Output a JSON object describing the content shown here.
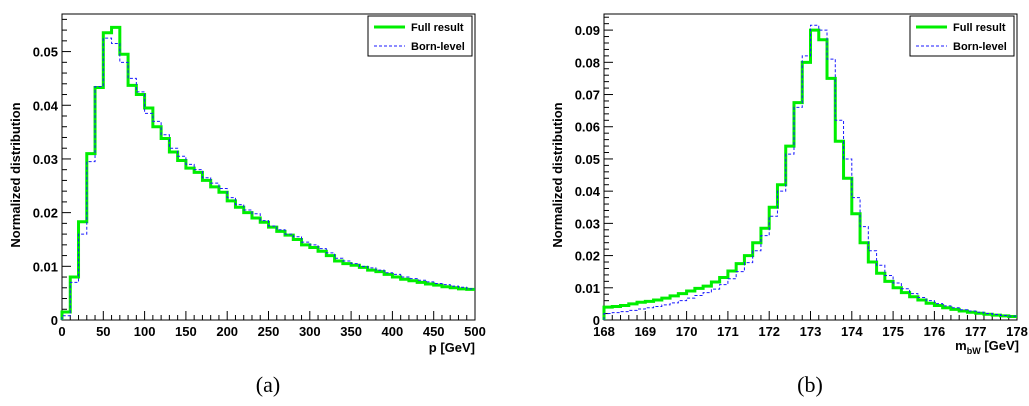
{
  "chart_data": [
    {
      "type": "line",
      "style": "step-histogram",
      "caption": "(a)",
      "xlabel": "p [GeV]",
      "ylabel": "Normalized distribution",
      "xlim": [
        0,
        500
      ],
      "ylim": [
        0,
        0.057
      ],
      "xticks": [
        0,
        50,
        100,
        150,
        200,
        250,
        300,
        350,
        400,
        450,
        500
      ],
      "xtick_labels": [
        "0",
        "50",
        "100",
        "150",
        "200",
        "250",
        "300",
        "350",
        "400",
        "450",
        "500"
      ],
      "yticks": [
        0,
        0.01,
        0.02,
        0.03,
        0.04,
        0.05
      ],
      "ytick_labels": [
        "0",
        "0.01",
        "0.02",
        "0.03",
        "0.04",
        "0.05"
      ],
      "grid": false,
      "legend_position": "top-right",
      "bin_edges": [
        0,
        10,
        20,
        30,
        40,
        50,
        60,
        70,
        80,
        90,
        100,
        110,
        120,
        130,
        140,
        150,
        160,
        170,
        180,
        190,
        200,
        210,
        220,
        230,
        240,
        250,
        260,
        270,
        280,
        290,
        300,
        310,
        320,
        330,
        340,
        350,
        360,
        370,
        380,
        390,
        400,
        410,
        420,
        430,
        440,
        450,
        460,
        470,
        480,
        490,
        500
      ],
      "series": [
        {
          "name": "Full result",
          "color": "#00ee00",
          "line": "solid",
          "values": [
            0.0015,
            0.008,
            0.0183,
            0.031,
            0.0433,
            0.0535,
            0.0545,
            0.0495,
            0.0437,
            0.042,
            0.0395,
            0.036,
            0.0338,
            0.0313,
            0.0297,
            0.0283,
            0.0275,
            0.026,
            0.0248,
            0.0238,
            0.0222,
            0.021,
            0.02,
            0.019,
            0.0182,
            0.0173,
            0.0165,
            0.0158,
            0.015,
            0.014,
            0.0135,
            0.0128,
            0.012,
            0.011,
            0.0105,
            0.0102,
            0.0098,
            0.0093,
            0.009,
            0.0085,
            0.008,
            0.0076,
            0.0073,
            0.007,
            0.0067,
            0.0065,
            0.0062,
            0.006,
            0.0058,
            0.0057
          ]
        },
        {
          "name": "Born-level",
          "color": "#1a1aff",
          "line": "dashed",
          "values": [
            0.0008,
            0.007,
            0.016,
            0.0295,
            0.0435,
            0.0525,
            0.0515,
            0.048,
            0.045,
            0.0425,
            0.0385,
            0.037,
            0.0345,
            0.032,
            0.0305,
            0.029,
            0.028,
            0.0265,
            0.0255,
            0.0245,
            0.0228,
            0.0215,
            0.0205,
            0.0198,
            0.0185,
            0.0175,
            0.0168,
            0.016,
            0.0155,
            0.0145,
            0.014,
            0.0133,
            0.0125,
            0.0115,
            0.011,
            0.0105,
            0.01,
            0.0097,
            0.0093,
            0.0088,
            0.0085,
            0.008,
            0.0077,
            0.0074,
            0.0071,
            0.0068,
            0.0066,
            0.0063,
            0.0061,
            0.0058
          ]
        }
      ]
    },
    {
      "type": "line",
      "style": "step-histogram",
      "caption": "(b)",
      "xlabel_main": "m",
      "xlabel_sub": "bW",
      "xlabel_unit": " [GeV]",
      "ylabel": "Normalized distribution",
      "xlim": [
        168,
        178
      ],
      "ylim": [
        0,
        0.095
      ],
      "xticks": [
        168,
        169,
        170,
        171,
        172,
        173,
        174,
        175,
        176,
        177,
        178
      ],
      "xtick_labels": [
        "168",
        "169",
        "170",
        "171",
        "172",
        "173",
        "174",
        "175",
        "176",
        "177",
        "178"
      ],
      "yticks": [
        0,
        0.01,
        0.02,
        0.03,
        0.04,
        0.05,
        0.06,
        0.07,
        0.08,
        0.09
      ],
      "ytick_labels": [
        "0",
        "0.01",
        "0.02",
        "0.03",
        "0.04",
        "0.05",
        "0.06",
        "0.07",
        "0.08",
        "0.09"
      ],
      "grid": false,
      "legend_position": "top-right",
      "bin_edges": [
        168,
        168.2,
        168.4,
        168.6,
        168.8,
        169,
        169.2,
        169.4,
        169.6,
        169.8,
        170,
        170.2,
        170.4,
        170.6,
        170.8,
        171,
        171.2,
        171.4,
        171.6,
        171.8,
        172,
        172.2,
        172.4,
        172.6,
        172.8,
        173,
        173.2,
        173.4,
        173.6,
        173.8,
        174,
        174.2,
        174.4,
        174.6,
        174.8,
        175,
        175.2,
        175.4,
        175.6,
        175.8,
        176,
        176.2,
        176.4,
        176.6,
        176.8,
        177,
        177.2,
        177.4,
        177.6,
        177.8,
        178
      ],
      "series": [
        {
          "name": "Full result",
          "color": "#00ee00",
          "line": "solid",
          "values": [
            0.004,
            0.0042,
            0.0045,
            0.005,
            0.0055,
            0.0058,
            0.0062,
            0.0068,
            0.0075,
            0.0082,
            0.009,
            0.0098,
            0.0105,
            0.0118,
            0.0132,
            0.0152,
            0.0175,
            0.02,
            0.024,
            0.0285,
            0.035,
            0.042,
            0.054,
            0.0675,
            0.08,
            0.09,
            0.087,
            0.075,
            0.0555,
            0.044,
            0.033,
            0.024,
            0.018,
            0.0145,
            0.012,
            0.01,
            0.0085,
            0.0072,
            0.0062,
            0.0052,
            0.0045,
            0.0038,
            0.0033,
            0.0028,
            0.0024,
            0.0021,
            0.0018,
            0.0015,
            0.0013,
            0.0011
          ]
        },
        {
          "name": "Born-level",
          "color": "#1a1aff",
          "line": "dashed",
          "values": [
            0.002,
            0.0023,
            0.0026,
            0.003,
            0.0034,
            0.0038,
            0.0042,
            0.0047,
            0.0053,
            0.006,
            0.0068,
            0.0076,
            0.0085,
            0.0096,
            0.011,
            0.0128,
            0.015,
            0.0178,
            0.0215,
            0.0262,
            0.0322,
            0.04,
            0.0515,
            0.066,
            0.082,
            0.0915,
            0.09,
            0.081,
            0.062,
            0.05,
            0.038,
            0.029,
            0.0215,
            0.017,
            0.0138,
            0.0115,
            0.0097,
            0.0082,
            0.007,
            0.006,
            0.0051,
            0.0044,
            0.0038,
            0.0032,
            0.0028,
            0.0024,
            0.002,
            0.0017,
            0.0014,
            0.0012
          ]
        }
      ]
    }
  ]
}
